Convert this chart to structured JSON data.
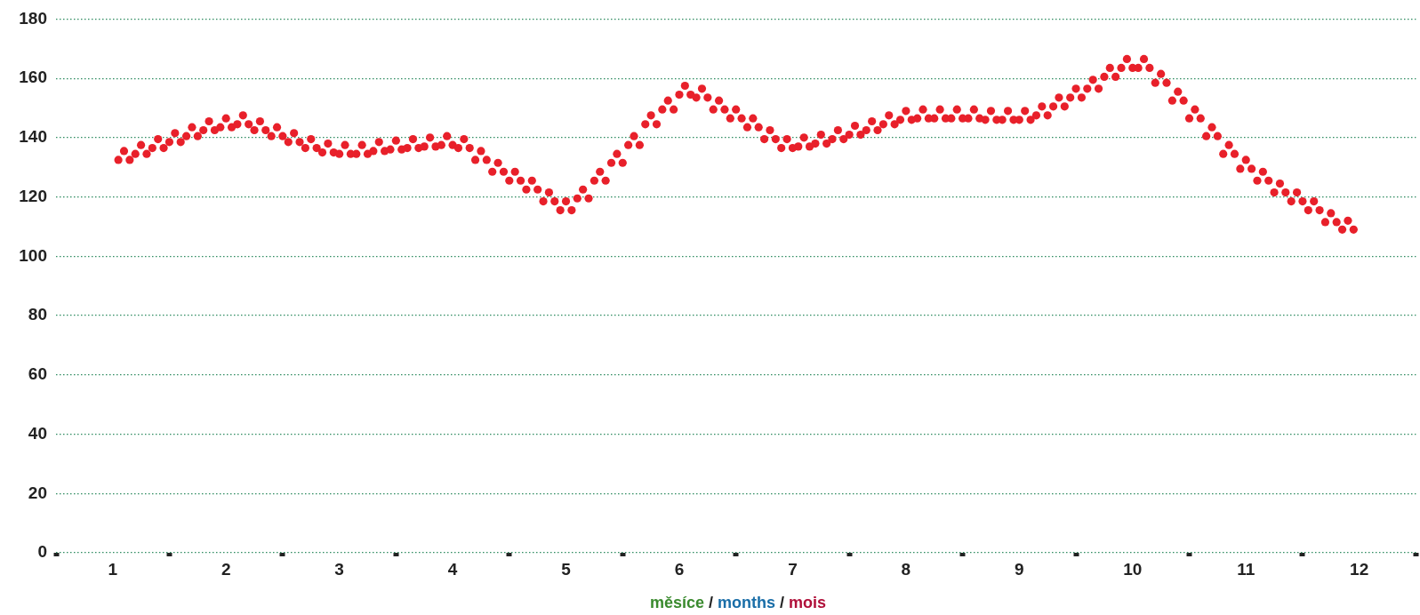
{
  "chart_data": {
    "type": "scatter",
    "xlabel": "měsíce / months / mois",
    "marker": "circle",
    "grid": "y",
    "xlim": [
      0.5,
      12.5
    ],
    "xticks": [
      {
        "value": 0.5,
        "label": null
      },
      1,
      {
        "value": 1.5,
        "label": null
      },
      2,
      {
        "value": 2.5,
        "label": null
      },
      3,
      {
        "value": 3.5,
        "label": null
      },
      4,
      {
        "value": 4.5,
        "label": null
      },
      5,
      {
        "value": 5.5,
        "label": null
      },
      6,
      {
        "value": 6.5,
        "label": null
      },
      7,
      {
        "value": 7.5,
        "label": null
      },
      8,
      {
        "value": 8.5,
        "label": null
      },
      9,
      {
        "value": 9.5,
        "label": null
      },
      10,
      {
        "value": 10.5,
        "label": null
      },
      11,
      {
        "value": 11.5,
        "label": null
      },
      12,
      {
        "value": 12.5,
        "label": null
      }
    ],
    "ylim": [
      0,
      180
    ],
    "yticks": [
      0,
      20,
      40,
      60,
      80,
      100,
      120,
      140,
      160,
      180
    ],
    "x": [
      1.05,
      1.1,
      1.15,
      1.2,
      1.25,
      1.3,
      1.35,
      1.4,
      1.45,
      1.5,
      1.55,
      1.6,
      1.65,
      1.7,
      1.75,
      1.8,
      1.85,
      1.9,
      1.95,
      2,
      2.05,
      2.1,
      2.15,
      2.2,
      2.25,
      2.3,
      2.35,
      2.4,
      2.45,
      2.5,
      2.55,
      2.6,
      2.65,
      2.7,
      2.75,
      2.8,
      2.85,
      2.9,
      2.95,
      3,
      3.05,
      3.1,
      3.15,
      3.2,
      3.25,
      3.3,
      3.35,
      3.4,
      3.45,
      3.5,
      3.55,
      3.6,
      3.65,
      3.7,
      3.75,
      3.8,
      3.85,
      3.9,
      3.95,
      4,
      4.05,
      4.1,
      4.15,
      4.2,
      4.25,
      4.3,
      4.35,
      4.4,
      4.45,
      4.5,
      4.55,
      4.6,
      4.65,
      4.7,
      4.75,
      4.8,
      4.85,
      4.9,
      4.95,
      5,
      5.05,
      5.1,
      5.15,
      5.2,
      5.25,
      5.3,
      5.35,
      5.4,
      5.45,
      5.5,
      5.55,
      5.6,
      5.65,
      5.7,
      5.75,
      5.8,
      5.85,
      5.9,
      5.95,
      6,
      6.05,
      6.1,
      6.15,
      6.2,
      6.25,
      6.3,
      6.35,
      6.4,
      6.45,
      6.5,
      6.55,
      6.6,
      6.65,
      6.7,
      6.75,
      6.8,
      6.85,
      6.9,
      6.95,
      7,
      7.05,
      7.1,
      7.15,
      7.2,
      7.25,
      7.3,
      7.35,
      7.4,
      7.45,
      7.5,
      7.55,
      7.6,
      7.65,
      7.7,
      7.75,
      7.8,
      7.85,
      7.9,
      7.95,
      8,
      8.05,
      8.1,
      8.15,
      8.2,
      8.25,
      8.3,
      8.35,
      8.4,
      8.45,
      8.5,
      8.55,
      8.6,
      8.65,
      8.7,
      8.75,
      8.8,
      8.85,
      8.9,
      8.95,
      9,
      9.05,
      9.1,
      9.15,
      9.2,
      9.25,
      9.3,
      9.35,
      9.4,
      9.45,
      9.5,
      9.55,
      9.6,
      9.65,
      9.7,
      9.75,
      9.8,
      9.85,
      9.9,
      9.95,
      10,
      10.05,
      10.1,
      10.15,
      10.2,
      10.25,
      10.3,
      10.35,
      10.4,
      10.45,
      10.5,
      10.55,
      10.6,
      10.65,
      10.7,
      10.75,
      10.8,
      10.85,
      10.9,
      10.95,
      11,
      11.05,
      11.1,
      11.15,
      11.2,
      11.25,
      11.3,
      11.35,
      11.4,
      11.45,
      11.5,
      11.55,
      11.6,
      11.65,
      11.7,
      11.75,
      11.8,
      11.85,
      11.9,
      11.95
    ],
    "series": [
      {
        "color": "#e8202a",
        "values": [
          132.5,
          135.5,
          132.5,
          134.5,
          137.5,
          134.5,
          136.5,
          139.5,
          136.5,
          138.5,
          141.5,
          138.5,
          140.5,
          143.5,
          140.5,
          142.5,
          145.5,
          142.5,
          143.5,
          146.5,
          143.5,
          144.5,
          147.5,
          144.5,
          142.5,
          145.5,
          142.5,
          140.5,
          143.5,
          140.5,
          138.5,
          141.5,
          138.5,
          136.5,
          139.5,
          136.5,
          135,
          138,
          135,
          134.5,
          137.5,
          134.5,
          134.5,
          137.5,
          134.5,
          135.5,
          138.5,
          135.5,
          136,
          139,
          136,
          136.5,
          139.5,
          136.5,
          137,
          140,
          137,
          137.5,
          140.5,
          137.5,
          136.5,
          139.5,
          136.5,
          132.5,
          135.5,
          132.5,
          128.5,
          131.5,
          128.5,
          125.5,
          128.5,
          125.5,
          122.5,
          125.5,
          122.5,
          118.5,
          121.5,
          118.5,
          115.5,
          118.5,
          115.5,
          119.5,
          122.5,
          119.5,
          125.5,
          128.5,
          125.5,
          131.5,
          134.5,
          131.5,
          137.5,
          140.5,
          137.5,
          144.5,
          147.5,
          144.5,
          149.5,
          152.5,
          149.5,
          154.5,
          157.5,
          154.5,
          153.5,
          156.5,
          153.5,
          149.5,
          152.5,
          149.5,
          146.5,
          149.5,
          146.5,
          143.5,
          146.5,
          143.5,
          139.5,
          142.5,
          139.5,
          136.5,
          139.5,
          136.5,
          137,
          140,
          137,
          138,
          141,
          138,
          139.5,
          142.5,
          139.5,
          141,
          144,
          141,
          142.5,
          145.5,
          142.5,
          144.5,
          147.5,
          144.5,
          146,
          149,
          146,
          146.5,
          149.5,
          146.5,
          146.5,
          149.5,
          146.5,
          146.5,
          149.5,
          146.5,
          146.5,
          149.5,
          146.5,
          146,
          149,
          146,
          146,
          149,
          146,
          146,
          149,
          146,
          147.5,
          150.5,
          147.5,
          150.5,
          153.5,
          150.5,
          153.5,
          156.5,
          153.5,
          156.5,
          159.5,
          156.5,
          160.5,
          163.5,
          160.5,
          163.5,
          166.5,
          163.5,
          163.5,
          166.5,
          163.5,
          158.5,
          161.5,
          158.5,
          152.5,
          155.5,
          152.5,
          146.5,
          149.5,
          146.5,
          140.5,
          143.5,
          140.5,
          134.5,
          137.5,
          134.5,
          129.5,
          132.5,
          129.5,
          125.5,
          128.5,
          125.5,
          121.5,
          124.5,
          121.5,
          118.5,
          121.5,
          118.5,
          115.5,
          118.5,
          115.5,
          111.5,
          114.5,
          111.5,
          109,
          112,
          109
        ]
      }
    ]
  }
}
